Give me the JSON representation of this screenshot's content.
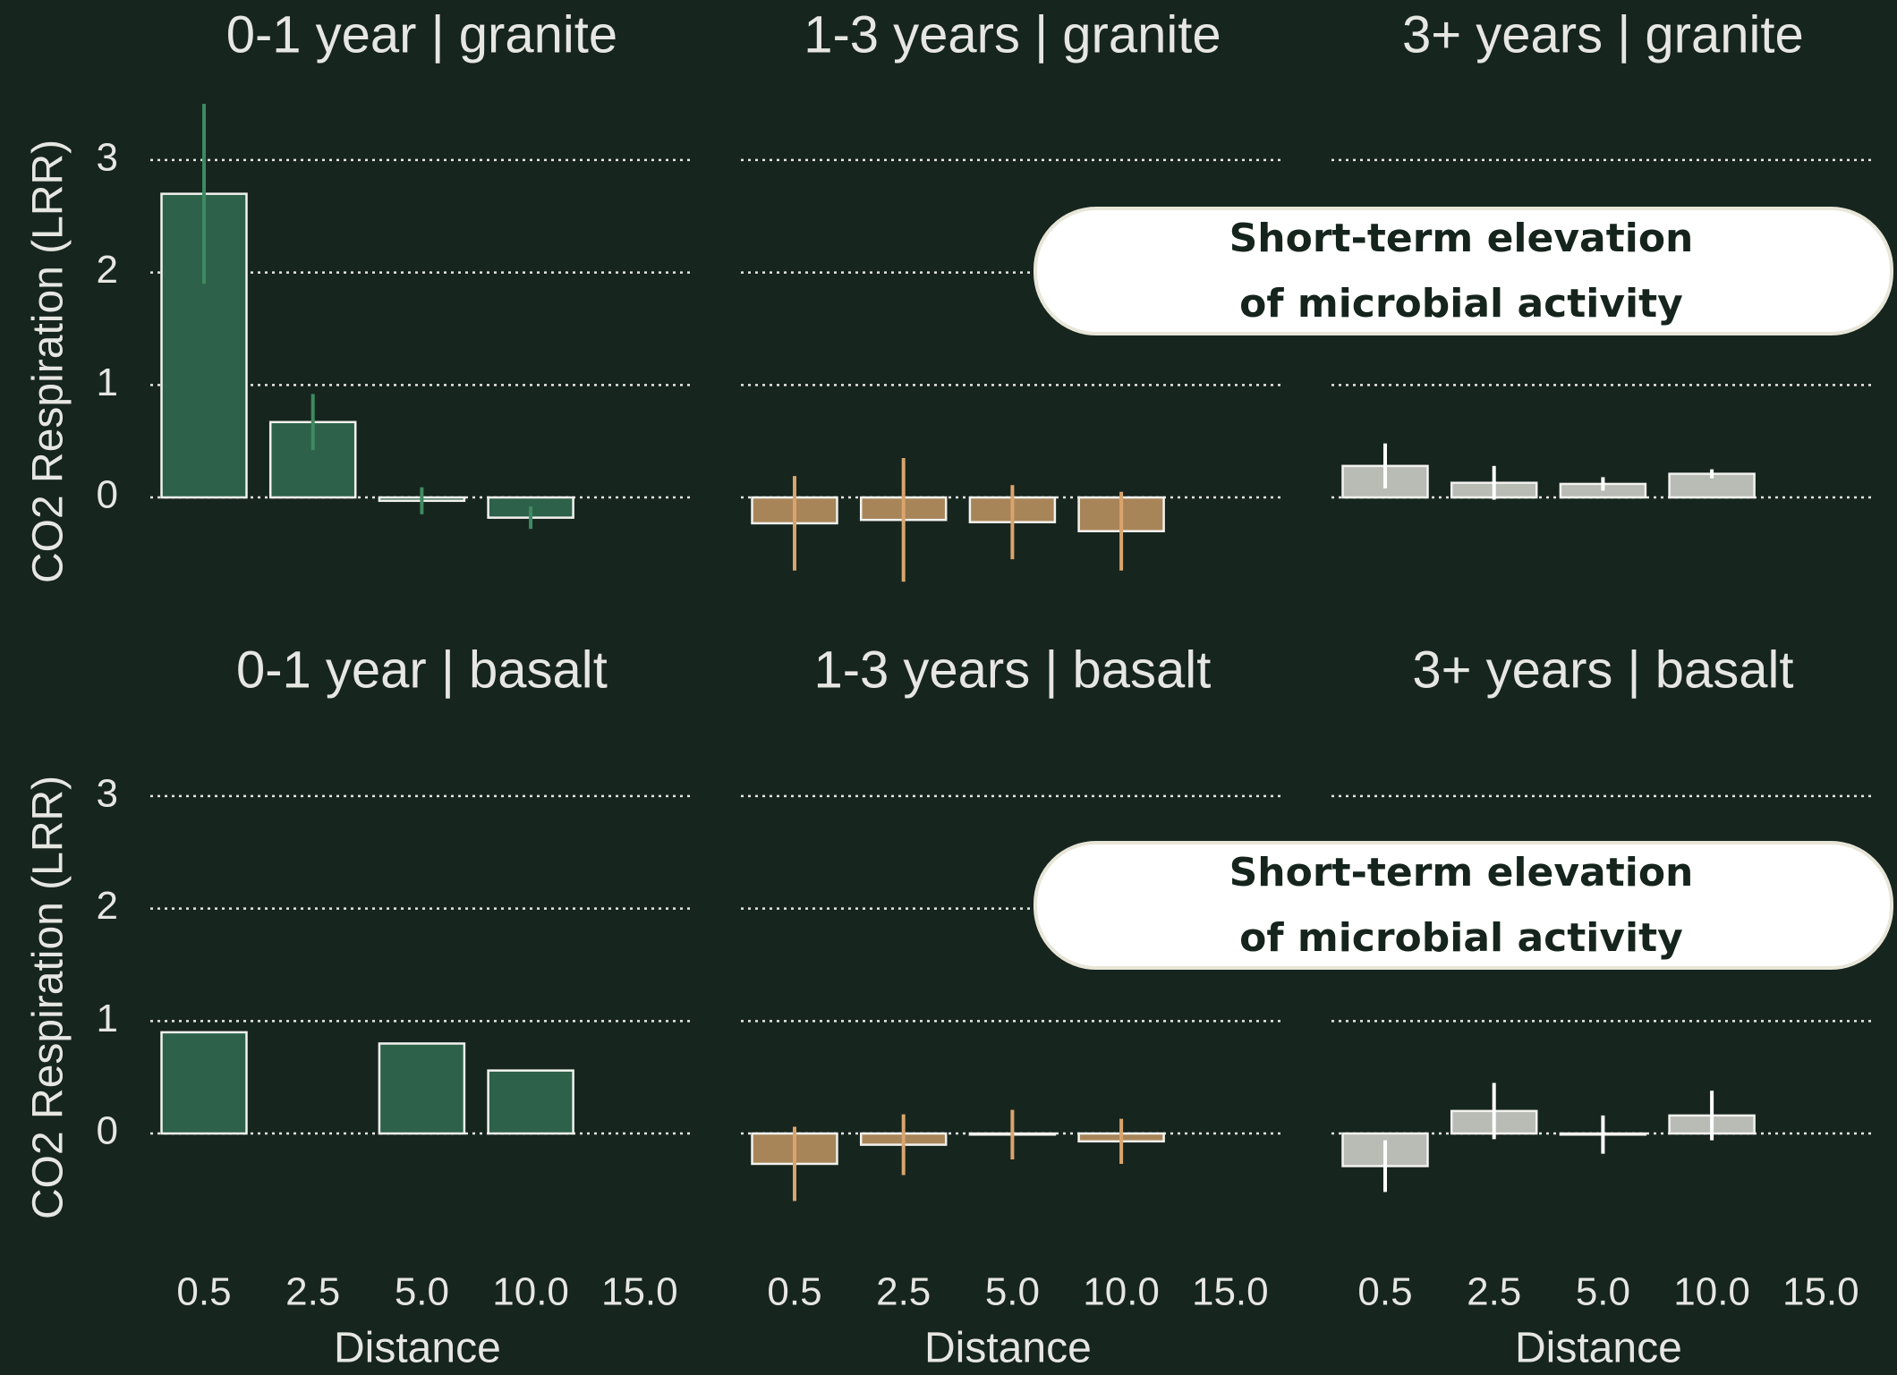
{
  "chart_data": [
    {
      "type": "bar",
      "title": "0-1 year | granite",
      "ylabel": "CO2 Respiration (LRR)",
      "categories": [
        "0.5",
        "2.5",
        "5.0",
        "10.0",
        "15.0"
      ],
      "values": [
        2.7,
        0.67,
        -0.03,
        -0.18,
        null
      ],
      "errors": [
        0.8,
        0.25,
        0.12,
        0.1,
        null
      ],
      "color": "#2e6149",
      "error_color": "#3e8a62",
      "ylim": [
        -1.1,
        3.6
      ],
      "yticks": [
        0,
        1,
        2,
        3
      ],
      "grid": true
    },
    {
      "type": "bar",
      "title": "1-3 years | granite",
      "categories": [
        "0.5",
        "2.5",
        "5.0",
        "10.0",
        "15.0"
      ],
      "values": [
        -0.23,
        -0.2,
        -0.22,
        -0.3,
        null
      ],
      "errors": [
        0.42,
        0.55,
        0.33,
        0.35,
        null
      ],
      "color": "#a88559",
      "error_color": "#d9a46d",
      "ylim": [
        -1.1,
        3.6
      ],
      "yticks": [
        0,
        1,
        2,
        3
      ],
      "grid": true
    },
    {
      "type": "bar",
      "title": "3+ years | granite",
      "categories": [
        "0.5",
        "2.5",
        "5.0",
        "10.0",
        "15.0"
      ],
      "values": [
        0.28,
        0.13,
        0.12,
        0.21,
        null
      ],
      "errors": [
        0.2,
        0.15,
        0.06,
        0.04,
        null
      ],
      "color": "#b9bbb5",
      "error_color": "#ffffff",
      "ylim": [
        -1.1,
        3.6
      ],
      "yticks": [
        0,
        1,
        2,
        3
      ],
      "grid": true,
      "annotation": [
        "Short-term elevation",
        "of microbial activity"
      ]
    },
    {
      "type": "bar",
      "title": "0-1 year | basalt",
      "ylabel": "CO2 Respiration (LRR)",
      "xlabel": "Distance",
      "categories": [
        "0.5",
        "2.5",
        "5.0",
        "10.0",
        "15.0"
      ],
      "values": [
        0.9,
        null,
        0.8,
        0.56,
        null
      ],
      "errors": [
        null,
        null,
        null,
        null,
        null
      ],
      "color": "#2e6149",
      "error_color": "#3e8a62",
      "ylim": [
        -1.1,
        3.6
      ],
      "yticks": [
        0,
        1,
        2,
        3
      ],
      "grid": true
    },
    {
      "type": "bar",
      "title": "1-3 years | basalt",
      "xlabel": "Distance",
      "categories": [
        "0.5",
        "2.5",
        "5.0",
        "10.0",
        "15.0"
      ],
      "values": [
        -0.27,
        -0.1,
        -0.01,
        -0.07,
        null
      ],
      "errors": [
        0.33,
        0.27,
        0.22,
        0.2,
        null
      ],
      "color": "#a88559",
      "error_color": "#d9a46d",
      "ylim": [
        -1.1,
        3.6
      ],
      "yticks": [
        0,
        1,
        2,
        3
      ],
      "grid": true
    },
    {
      "type": "bar",
      "title": "3+ years | basalt",
      "xlabel": "Distance",
      "categories": [
        "0.5",
        "2.5",
        "5.0",
        "10.0",
        "15.0"
      ],
      "values": [
        -0.29,
        0.2,
        -0.01,
        0.16,
        null
      ],
      "errors": [
        0.23,
        0.25,
        0.17,
        0.22,
        null
      ],
      "color": "#b9bbb5",
      "error_color": "#ffffff",
      "ylim": [
        -1.1,
        3.6
      ],
      "yticks": [
        0,
        1,
        2,
        3
      ],
      "grid": true,
      "annotation": [
        "Short-term elevation",
        "of microbial activity"
      ]
    }
  ]
}
